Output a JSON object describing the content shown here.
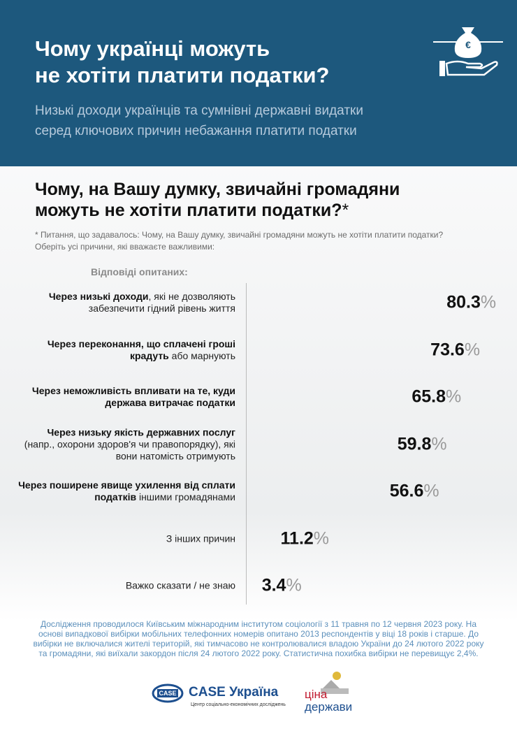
{
  "header": {
    "title": [
      "Чому українці можуть",
      "не хотіти платити податки?"
    ],
    "subtitle": [
      "Низькі доходи українців та сумнівні державні видатки",
      "серед ключових причин небажання платити податки"
    ]
  },
  "chart_data": {
    "type": "bar",
    "orientation": "horizontal",
    "title": [
      "Чому, на Вашу думку, звичайні громадяни",
      "можуть не хотіти платити податки?"
    ],
    "title_mark": "*",
    "note": "* Питання, що задавалось: Чому, на Вашу думку, звичайні громадяни можуть не хотіти платити податки? Оберіть усі причини, які вважаєте важливими:",
    "label_heading": "Відповіді опитаних:",
    "categories": [
      [
        {
          "text": "Через низькі доходи",
          "bold": true
        },
        {
          "text": ", які не дозволяють забезпечити гідний рівень життя",
          "bold": false
        }
      ],
      [
        {
          "text": "Через переконання, що сплачені гроші крадуть",
          "bold": true
        },
        {
          "text": " або марнують",
          "bold": false
        }
      ],
      [
        {
          "text": "Через неможливість впливати на те, куди держава витрачає податки",
          "bold": true
        }
      ],
      [
        {
          "text": "Через низьку якість державних послуг",
          "bold": true
        },
        {
          "text": " (напр., охорони здоров'я чи правопорядку), які вони натомість отримують",
          "bold": false
        }
      ],
      [
        {
          "text": "Через поширене явище ухилення від сплати податків",
          "bold": true
        },
        {
          "text": " іншими громадянами",
          "bold": false
        }
      ],
      [
        {
          "text": "З інших причин",
          "bold": false
        }
      ],
      [
        {
          "text": "Важко сказати / не знаю",
          "bold": false
        }
      ]
    ],
    "values": [
      80.3,
      73.6,
      65.8,
      59.8,
      56.6,
      11.2,
      3.4
    ],
    "unit": "%",
    "colors": [
      "#c0182d",
      "#c0182d",
      "#33718f",
      "#33718f",
      "#33718f",
      "#33718f",
      "#33718f"
    ]
  },
  "footer": {
    "text": "Дослідження проводилося Київським міжнародним інститутом соціології з 11 травня по 12 червня 2023 року. На основі випадкової вибірки мобільних телефонних номерів опитано 2013 респондентів у віці 18 років і старше. До вибірки не включалися жителі територій, які тимчасово не контролювалися владою України до 24 лютого 2022 року та громадяни, які виїхали закордон після 24 лютого 2022 року. Статистична похибка вибірки не перевищує 2,4%.",
    "case_badge": "CASE",
    "case_title": "CASE Україна",
    "case_subtitle": "Центр соціально-економічних досліджень",
    "cina_top": "ціна",
    "cina_bottom": "держави"
  }
}
